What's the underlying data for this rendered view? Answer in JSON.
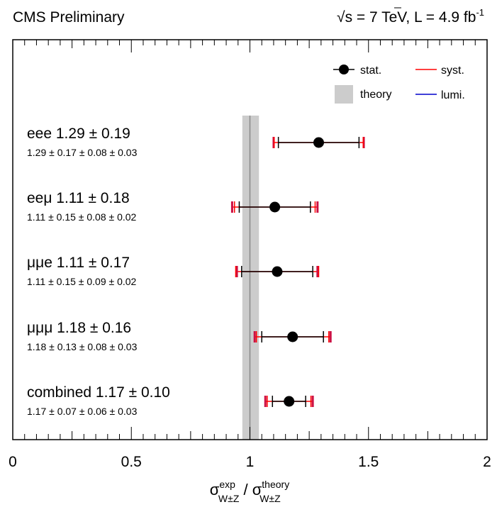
{
  "header": {
    "left": "CMS Preliminary",
    "sqrt_symbol": "√",
    "energy": "s = 7 TeV, L = 4.9 fb",
    "lumi_exp": "-1"
  },
  "legend": {
    "stat": "stat.",
    "syst": "syst.",
    "theory": "theory",
    "lumi": "lumi."
  },
  "colors": {
    "stat": "#000000",
    "syst": "#ff0000",
    "lumi": "#0000cc",
    "theory_band": "#cccccc",
    "theory_line": "#888888"
  },
  "axis": {
    "sigma": "σ",
    "exp_sup": "exp",
    "sub": "W±Z",
    "slash": " / ",
    "theory_sup": "theory"
  },
  "chart_data": {
    "type": "scatter",
    "orientation": "horizontal",
    "xlim": [
      0,
      2
    ],
    "x_ticks": [
      0,
      0.5,
      1,
      1.5,
      2
    ],
    "x_tick_labels": [
      "0",
      "0.5",
      "1",
      "1.5",
      "2"
    ],
    "theory": {
      "value": 1.0,
      "band": [
        0.968,
        1.038
      ]
    },
    "channels": [
      {
        "label": "eee 1.29 ± 0.19",
        "breakdown": "1.29 ± 0.17 ± 0.08 ± 0.03",
        "value": 1.29,
        "stat": 0.17,
        "syst": 0.08,
        "lumi": 0.03,
        "total": 0.19
      },
      {
        "label": "eeμ 1.11 ± 0.18",
        "breakdown": "1.11 ± 0.15 ± 0.08 ± 0.02",
        "value": 1.105,
        "stat": 0.15,
        "syst": 0.08,
        "lumi": 0.02,
        "total": 0.18
      },
      {
        "label": "μμe 1.11 ± 0.17",
        "breakdown": "1.11 ± 0.15 ± 0.09 ± 0.02",
        "value": 1.115,
        "stat": 0.15,
        "syst": 0.09,
        "lumi": 0.02,
        "total": 0.17
      },
      {
        "label": "μμμ 1.18 ± 0.16",
        "breakdown": "1.18 ± 0.13 ± 0.08 ± 0.03",
        "value": 1.18,
        "stat": 0.13,
        "syst": 0.08,
        "lumi": 0.03,
        "total": 0.16
      },
      {
        "label": "combined 1.17 ± 0.10",
        "breakdown": "1.17 ± 0.07 ± 0.06 ± 0.03",
        "value": 1.165,
        "stat": 0.07,
        "syst": 0.06,
        "lumi": 0.03,
        "total": 0.1
      }
    ]
  }
}
